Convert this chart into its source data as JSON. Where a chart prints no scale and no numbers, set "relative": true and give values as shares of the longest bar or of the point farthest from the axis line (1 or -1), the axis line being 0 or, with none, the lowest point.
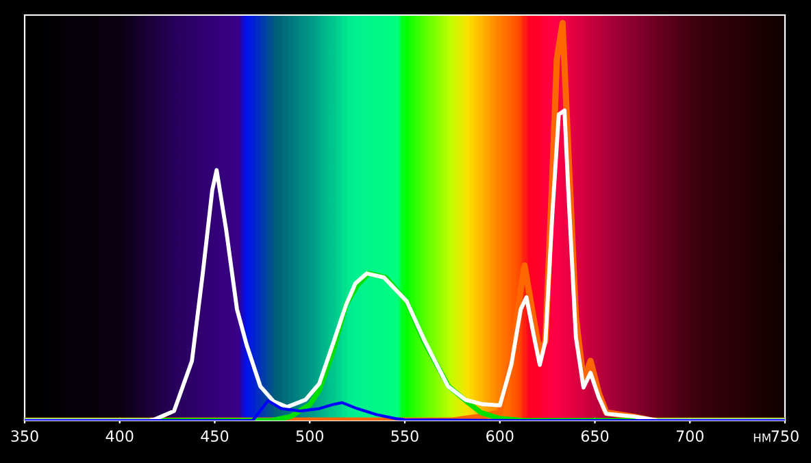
{
  "chart_data": {
    "type": "line",
    "relative": true,
    "xlabel": "НМ",
    "xlim": [
      350,
      750
    ],
    "xticks": [
      350,
      400,
      450,
      500,
      550,
      600,
      650,
      700,
      750
    ],
    "grid": false,
    "legend": false,
    "marker": "none",
    "line_style": "solid",
    "series": [
      {
        "color": "#ff6600",
        "x": [
          350,
          575,
          590,
          600,
          606,
          611,
          613,
          618,
          621,
          624,
          627.5,
          630,
          633,
          636,
          640,
          644,
          647.7,
          652,
          656,
          670,
          680,
          750
        ],
        "values": [
          0,
          0,
          0.01,
          0.02,
          0.15,
          0.33,
          0.39,
          0.25,
          0.17,
          0.2,
          0.6,
          0.91,
          1.0,
          0.68,
          0.26,
          0.1,
          0.15,
          0.07,
          0.02,
          0.01,
          0,
          0
        ]
      },
      {
        "color": "#00e000",
        "x": [
          350,
          480,
          490,
          500,
          505,
          512,
          519,
          525,
          531,
          540,
          551,
          560,
          573,
          582,
          590,
          600,
          612,
          750
        ],
        "values": [
          0,
          0,
          0.01,
          0.04,
          0.076,
          0.17,
          0.29,
          0.34,
          0.37,
          0.36,
          0.3,
          0.2,
          0.086,
          0.05,
          0.02,
          0.005,
          0,
          0
        ]
      },
      {
        "color": "#ffffff",
        "x": [
          350,
          415,
          418.5,
          428.6,
          438,
          443.7,
          448.7,
          451,
          456,
          461.7,
          466.8,
          474,
          481,
          488,
          497.7,
          505,
          512,
          519,
          524,
          530,
          539,
          551,
          560.5,
          572.7,
          582,
          591,
          600,
          606,
          611,
          614,
          618,
          621,
          624,
          627.5,
          631,
          634,
          636,
          640,
          644,
          647.7,
          652,
          656,
          670.7,
          683,
          750
        ],
        "values": [
          0,
          0,
          0.003,
          0.024,
          0.15,
          0.37,
          0.58,
          0.63,
          0.48,
          0.28,
          0.19,
          0.086,
          0.048,
          0.034,
          0.052,
          0.093,
          0.19,
          0.29,
          0.345,
          0.37,
          0.36,
          0.3,
          0.2,
          0.086,
          0.052,
          0.041,
          0.038,
          0.14,
          0.28,
          0.31,
          0.21,
          0.14,
          0.2,
          0.51,
          0.77,
          0.78,
          0.58,
          0.21,
          0.083,
          0.12,
          0.059,
          0.017,
          0.01,
          0,
          0
        ]
      },
      {
        "color": "#0000ff",
        "x": [
          350,
          470,
          478,
          485,
          495,
          505,
          512,
          517,
          525,
          535,
          545,
          550,
          612,
          750
        ],
        "values": [
          0,
          0,
          0.05,
          0.03,
          0.024,
          0.03,
          0.04,
          0.045,
          0.03,
          0.015,
          0.005,
          0.002,
          0,
          0
        ]
      }
    ]
  }
}
